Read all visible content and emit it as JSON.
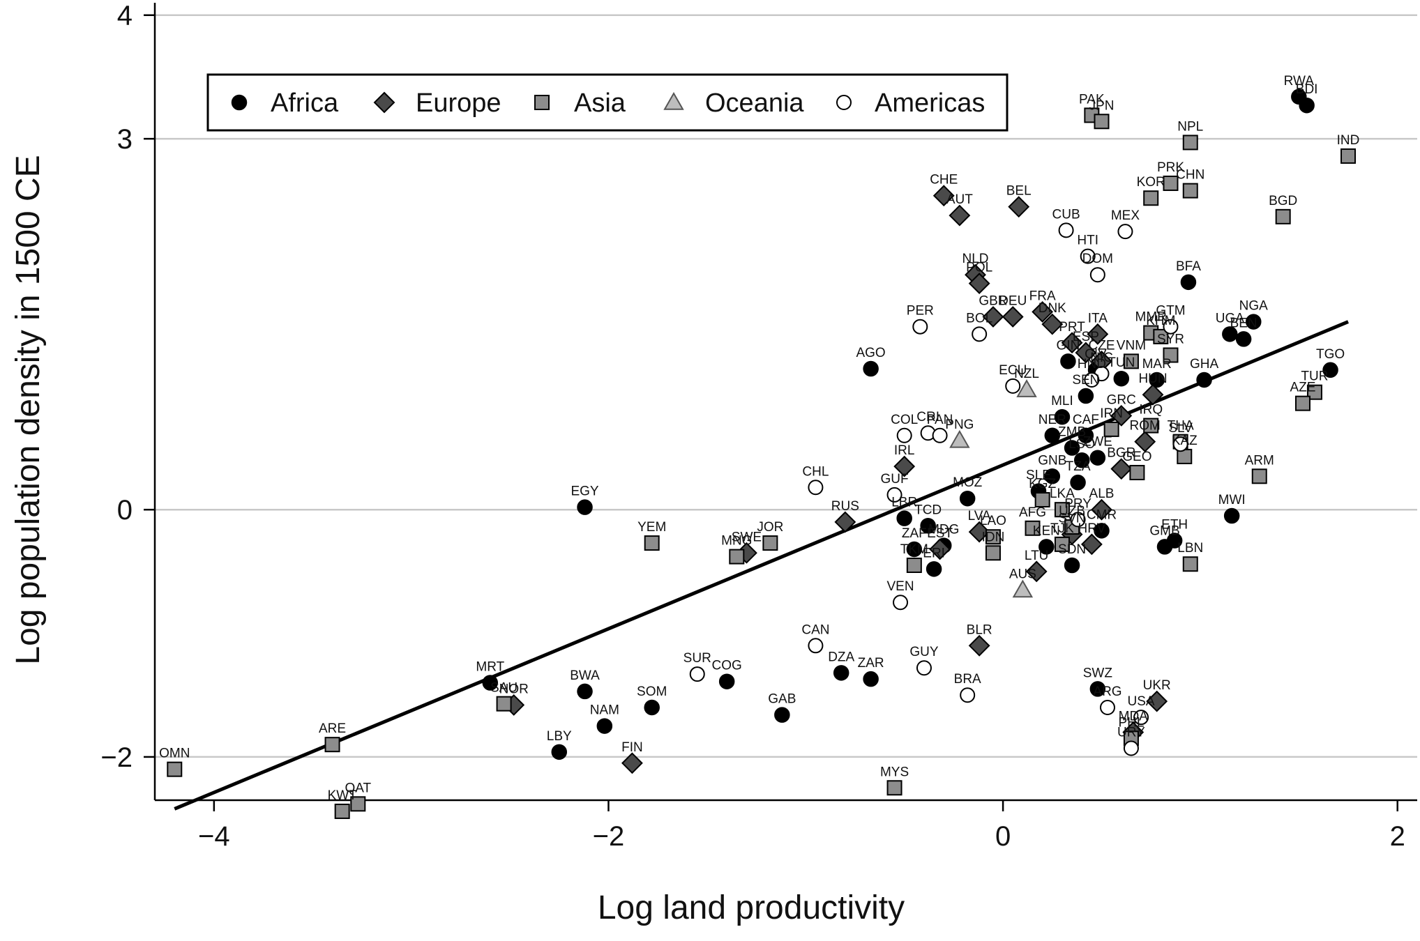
{
  "chart_data": {
    "type": "scatter",
    "xlabel": "Log land productivity",
    "ylabel": "Log population density in 1500 CE",
    "xlim": [
      -4.3,
      2.1
    ],
    "ylim": [
      -2.35,
      4.1
    ],
    "xticks": [
      {
        "value": -4,
        "label": "−4"
      },
      {
        "value": -2,
        "label": "−2"
      },
      {
        "value": 0,
        "label": "0"
      },
      {
        "value": 2,
        "label": "2"
      }
    ],
    "yticks": [
      {
        "value": -2,
        "label": "−2"
      },
      {
        "value": 0,
        "label": "0"
      },
      {
        "value": 3,
        "label": "3"
      },
      {
        "value": 4,
        "label": "4"
      }
    ],
    "grid": "horizontal",
    "legend_position": "top-left",
    "colors": {
      "dark": "#000000",
      "europe": "#4a4a4a",
      "asia": "#8c8c8c",
      "oceania": "#bdbdbd",
      "open": "#ffffff"
    },
    "legend": [
      {
        "key": "Africa",
        "label": "Africa",
        "marker": "circle"
      },
      {
        "key": "Europe",
        "label": "Europe",
        "marker": "diamond"
      },
      {
        "key": "Asia",
        "label": "Asia",
        "marker": "square"
      },
      {
        "key": "Oceania",
        "label": "Oceania",
        "marker": "triangle"
      },
      {
        "key": "Americas",
        "label": "Americas",
        "marker": "open-circle"
      }
    ],
    "fit_line": {
      "x": [
        -4.2,
        1.75
      ],
      "y": [
        -2.42,
        1.52
      ]
    },
    "series": [
      {
        "name": "Africa",
        "marker": "circle",
        "points": [
          {
            "label": "RWA",
            "x": 1.5,
            "y": 3.34
          },
          {
            "label": "BDI",
            "x": 1.54,
            "y": 3.27
          },
          {
            "label": "NGA",
            "x": 1.27,
            "y": 1.52
          },
          {
            "label": "UGA",
            "x": 1.15,
            "y": 1.42
          },
          {
            "label": "BEN",
            "x": 1.22,
            "y": 1.38
          },
          {
            "label": "TGO",
            "x": 1.66,
            "y": 1.13
          },
          {
            "label": "BFA",
            "x": 0.94,
            "y": 1.84
          },
          {
            "label": "GHA",
            "x": 1.02,
            "y": 1.05
          },
          {
            "label": "MWI",
            "x": 1.16,
            "y": -0.05
          },
          {
            "label": "ETH",
            "x": 0.87,
            "y": -0.25
          },
          {
            "label": "GMB",
            "x": 0.82,
            "y": -0.3
          },
          {
            "label": "EGY",
            "x": -2.12,
            "y": 0.02
          },
          {
            "label": "AGO",
            "x": -0.67,
            "y": 1.14
          },
          {
            "label": "MRT",
            "x": -2.6,
            "y": -1.4
          },
          {
            "label": "BWA",
            "x": -2.12,
            "y": -1.47
          },
          {
            "label": "SOM",
            "x": -1.78,
            "y": -1.6
          },
          {
            "label": "NAM",
            "x": -2.02,
            "y": -1.75
          },
          {
            "label": "LBY",
            "x": -2.25,
            "y": -1.96
          },
          {
            "label": "COG",
            "x": -1.4,
            "y": -1.39
          },
          {
            "label": "GAB",
            "x": -1.12,
            "y": -1.66
          },
          {
            "label": "DZA",
            "x": -0.82,
            "y": -1.32
          },
          {
            "label": "ZAR",
            "x": -0.67,
            "y": -1.37
          },
          {
            "label": "LBR",
            "x": -0.5,
            "y": -0.07
          },
          {
            "label": "TCD",
            "x": -0.38,
            "y": -0.13
          },
          {
            "label": "MDG",
            "x": -0.3,
            "y": -0.29
          },
          {
            "label": "SWZ",
            "x": 0.48,
            "y": -1.45
          },
          {
            "label": "MOZ",
            "x": -0.18,
            "y": 0.09
          },
          {
            "label": "SLE",
            "x": 0.18,
            "y": 0.15
          },
          {
            "label": "TZA",
            "x": 0.38,
            "y": 0.22
          },
          {
            "label": "CMR",
            "x": 0.5,
            "y": -0.17
          },
          {
            "label": "KEN",
            "x": 0.22,
            "y": -0.3
          },
          {
            "label": "SDN",
            "x": 0.35,
            "y": -0.45
          },
          {
            "label": "GIN",
            "x": 0.33,
            "y": 1.2
          },
          {
            "label": "CIV",
            "x": 0.47,
            "y": 1.13
          },
          {
            "label": "SEN",
            "x": 0.42,
            "y": 0.92
          },
          {
            "label": "MLI",
            "x": 0.3,
            "y": 0.75
          },
          {
            "label": "NER",
            "x": 0.25,
            "y": 0.6
          },
          {
            "label": "CAF",
            "x": 0.42,
            "y": 0.6
          },
          {
            "label": "ZMB",
            "x": 0.35,
            "y": 0.5
          },
          {
            "label": "ZWE",
            "x": 0.48,
            "y": 0.42
          },
          {
            "label": "GNB",
            "x": 0.25,
            "y": 0.27
          },
          {
            "label": "LSO",
            "x": 0.4,
            "y": 0.4
          },
          {
            "label": "MAR",
            "x": 0.78,
            "y": 1.05
          },
          {
            "label": "TUN",
            "x": 0.6,
            "y": 1.06
          },
          {
            "label": "ZAF",
            "x": -0.45,
            "y": -0.32
          },
          {
            "label": "ERI",
            "x": -0.35,
            "y": -0.48
          }
        ]
      },
      {
        "name": "Europe",
        "marker": "diamond",
        "points": [
          {
            "label": "CHE",
            "x": -0.3,
            "y": 2.54
          },
          {
            "label": "AUT",
            "x": -0.22,
            "y": 2.38
          },
          {
            "label": "BEL",
            "x": 0.08,
            "y": 2.45
          },
          {
            "label": "NLD",
            "x": -0.14,
            "y": 1.9
          },
          {
            "label": "POL",
            "x": -0.12,
            "y": 1.83
          },
          {
            "label": "GBR",
            "x": -0.05,
            "y": 1.56
          },
          {
            "label": "DEU",
            "x": 0.05,
            "y": 1.56
          },
          {
            "label": "FRA",
            "x": 0.2,
            "y": 1.6
          },
          {
            "label": "DNK",
            "x": 0.25,
            "y": 1.5
          },
          {
            "label": "ITA",
            "x": 0.48,
            "y": 1.42
          },
          {
            "label": "PRT",
            "x": 0.35,
            "y": 1.35
          },
          {
            "label": "ESP",
            "x": 0.42,
            "y": 1.27
          },
          {
            "label": "CZE",
            "x": 0.5,
            "y": 1.2
          },
          {
            "label": "HUN",
            "x": 0.76,
            "y": 0.93
          },
          {
            "label": "GRC",
            "x": 0.6,
            "y": 0.76
          },
          {
            "label": "IRL",
            "x": -0.5,
            "y": 0.35
          },
          {
            "label": "RUS",
            "x": -0.8,
            "y": -0.1
          },
          {
            "label": "SWE",
            "x": -1.3,
            "y": -0.35
          },
          {
            "label": "NOR",
            "x": -2.48,
            "y": -1.58
          },
          {
            "label": "FIN",
            "x": -1.88,
            "y": -2.05
          },
          {
            "label": "LVA",
            "x": -0.12,
            "y": -0.18
          },
          {
            "label": "EST",
            "x": -0.32,
            "y": -0.32
          },
          {
            "label": "LTU",
            "x": 0.17,
            "y": -0.5
          },
          {
            "label": "BLR",
            "x": -0.12,
            "y": -1.1
          },
          {
            "label": "UKR",
            "x": 0.78,
            "y": -1.55
          },
          {
            "label": "MDA",
            "x": 0.66,
            "y": -1.8
          },
          {
            "label": "ROM",
            "x": 0.72,
            "y": 0.55
          },
          {
            "label": "BGR",
            "x": 0.6,
            "y": 0.33
          },
          {
            "label": "ALB",
            "x": 0.5,
            "y": 0.0
          },
          {
            "label": "SVN",
            "x": 0.35,
            "y": -0.2
          },
          {
            "label": "HRV",
            "x": 0.45,
            "y": -0.28
          }
        ]
      },
      {
        "name": "Asia",
        "marker": "square",
        "points": [
          {
            "label": "PAK",
            "x": 0.45,
            "y": 3.19
          },
          {
            "label": "JPN",
            "x": 0.5,
            "y": 3.14
          },
          {
            "label": "NPL",
            "x": 0.95,
            "y": 2.97
          },
          {
            "label": "IND",
            "x": 1.75,
            "y": 2.86
          },
          {
            "label": "PRK",
            "x": 0.85,
            "y": 2.64
          },
          {
            "label": "CHN",
            "x": 0.95,
            "y": 2.58
          },
          {
            "label": "KOR",
            "x": 0.75,
            "y": 2.52
          },
          {
            "label": "BGD",
            "x": 1.42,
            "y": 2.37
          },
          {
            "label": "MMR",
            "x": 0.75,
            "y": 1.43
          },
          {
            "label": "KHM",
            "x": 0.8,
            "y": 1.4
          },
          {
            "label": "SYR",
            "x": 0.85,
            "y": 1.25
          },
          {
            "label": "VNM",
            "x": 0.65,
            "y": 1.2
          },
          {
            "label": "THA",
            "x": 0.9,
            "y": 0.55
          },
          {
            "label": "IRQ",
            "x": 0.75,
            "y": 0.68
          },
          {
            "label": "IRN",
            "x": 0.55,
            "y": 0.65
          },
          {
            "label": "TUR",
            "x": 1.58,
            "y": 0.95
          },
          {
            "label": "AZE",
            "x": 1.52,
            "y": 0.86
          },
          {
            "label": "ARM",
            "x": 1.3,
            "y": 0.27
          },
          {
            "label": "KAZ",
            "x": 0.92,
            "y": 0.43
          },
          {
            "label": "GEO",
            "x": 0.68,
            "y": 0.3
          },
          {
            "label": "LBN",
            "x": 0.95,
            "y": -0.44
          },
          {
            "label": "UZB",
            "x": 0.35,
            "y": -0.14
          },
          {
            "label": "KGZ",
            "x": 0.2,
            "y": 0.08
          },
          {
            "label": "TJK",
            "x": 0.3,
            "y": -0.28
          },
          {
            "label": "JOR",
            "x": -1.18,
            "y": -0.27
          },
          {
            "label": "MNG",
            "x": -1.35,
            "y": -0.38
          },
          {
            "label": "YEM",
            "x": -1.78,
            "y": -0.27
          },
          {
            "label": "SAU",
            "x": -2.53,
            "y": -1.57
          },
          {
            "label": "ARE",
            "x": -3.4,
            "y": -1.9
          },
          {
            "label": "OMN",
            "x": -4.2,
            "y": -2.1
          },
          {
            "label": "KWT",
            "x": -3.35,
            "y": -2.44
          },
          {
            "label": "QAT",
            "x": -3.27,
            "y": -2.38
          },
          {
            "label": "MYS",
            "x": -0.55,
            "y": -2.25
          },
          {
            "label": "PHL",
            "x": 0.65,
            "y": -1.85
          },
          {
            "label": "LAO",
            "x": -0.05,
            "y": -0.22
          },
          {
            "label": "IDN",
            "x": -0.05,
            "y": -0.35
          },
          {
            "label": "TKM",
            "x": -0.45,
            "y": -0.45
          },
          {
            "label": "AFG",
            "x": 0.15,
            "y": -0.15
          },
          {
            "label": "LKA",
            "x": 0.3,
            "y": 0.0
          }
        ]
      },
      {
        "name": "Oceania",
        "marker": "triangle",
        "points": [
          {
            "label": "NZL",
            "x": 0.12,
            "y": 0.97
          },
          {
            "label": "PNG",
            "x": -0.22,
            "y": 0.56
          },
          {
            "label": "AUS",
            "x": 0.1,
            "y": -0.65
          }
        ]
      },
      {
        "name": "Americas",
        "marker": "open-circle",
        "points": [
          {
            "label": "CUB",
            "x": 0.32,
            "y": 2.26
          },
          {
            "label": "MEX",
            "x": 0.62,
            "y": 2.25
          },
          {
            "label": "HTI",
            "x": 0.43,
            "y": 2.05
          },
          {
            "label": "DOM",
            "x": 0.48,
            "y": 1.9
          },
          {
            "label": "GTM",
            "x": 0.85,
            "y": 1.48
          },
          {
            "label": "PER",
            "x": -0.42,
            "y": 1.48
          },
          {
            "label": "BOL",
            "x": -0.12,
            "y": 1.42
          },
          {
            "label": "ECU",
            "x": 0.05,
            "y": 1.0
          },
          {
            "label": "COL",
            "x": -0.5,
            "y": 0.6
          },
          {
            "label": "CRI",
            "x": -0.38,
            "y": 0.62
          },
          {
            "label": "PAN",
            "x": -0.32,
            "y": 0.6
          },
          {
            "label": "NIC",
            "x": 0.5,
            "y": 1.1
          },
          {
            "label": "HND",
            "x": 0.45,
            "y": 1.05
          },
          {
            "label": "SLV",
            "x": 0.9,
            "y": 0.53
          },
          {
            "label": "VEN",
            "x": -0.52,
            "y": -0.75
          },
          {
            "label": "CHL",
            "x": -0.95,
            "y": 0.18
          },
          {
            "label": "CAN",
            "x": -0.95,
            "y": -1.1
          },
          {
            "label": "SUR",
            "x": -1.55,
            "y": -1.33
          },
          {
            "label": "GUY",
            "x": -0.4,
            "y": -1.28
          },
          {
            "label": "BRA",
            "x": -0.18,
            "y": -1.5
          },
          {
            "label": "ARG",
            "x": 0.53,
            "y": -1.6
          },
          {
            "label": "USA",
            "x": 0.7,
            "y": -1.68
          },
          {
            "label": "URY",
            "x": 0.65,
            "y": -1.93
          },
          {
            "label": "PRY",
            "x": 0.38,
            "y": -0.08
          },
          {
            "label": "GUF",
            "x": -0.55,
            "y": 0.12
          }
        ]
      }
    ]
  }
}
